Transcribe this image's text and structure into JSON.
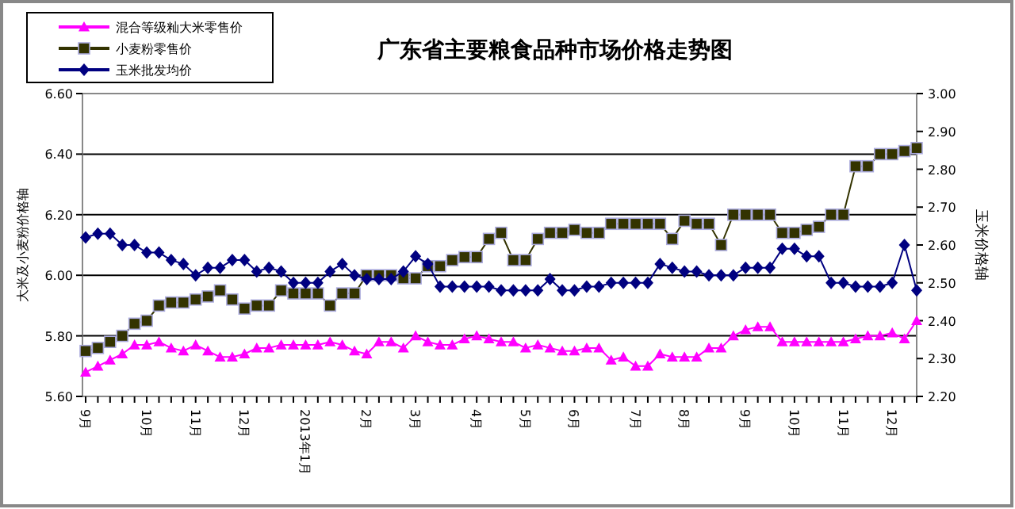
{
  "chart_data": {
    "type": "line",
    "title": "广东省主要粮食品种市场价格走势图",
    "ylabel": "大米及小麦粉价格轴",
    "y2label": "玉米价格轴",
    "categories": [
      "9月",
      null,
      null,
      null,
      null,
      "10月",
      null,
      null,
      null,
      "11月",
      null,
      null,
      null,
      "12月",
      null,
      null,
      null,
      null,
      "2013年1月",
      null,
      null,
      null,
      null,
      "2月",
      null,
      null,
      null,
      "3月",
      null,
      null,
      null,
      null,
      "4月",
      null,
      null,
      null,
      "5月",
      null,
      null,
      null,
      "6月",
      null,
      null,
      null,
      null,
      "7月",
      null,
      null,
      null,
      "8月",
      null,
      null,
      null,
      null,
      "9月",
      null,
      null,
      null,
      "10月",
      null,
      null,
      null,
      "11月",
      null,
      null,
      null,
      "12月",
      null,
      null
    ],
    "series": [
      {
        "name": "混合等级籼大米零售价",
        "color": "#ff00ff",
        "marker": "triangle",
        "values": [
          5.68,
          5.7,
          5.72,
          5.74,
          5.77,
          5.77,
          5.78,
          5.76,
          5.75,
          5.77,
          5.75,
          5.73,
          5.73,
          5.74,
          5.76,
          5.76,
          5.77,
          5.77,
          5.77,
          5.77,
          5.78,
          5.77,
          5.75,
          5.74,
          5.78,
          5.78,
          5.76,
          5.8,
          5.78,
          5.77,
          5.77,
          5.79,
          5.8,
          5.79,
          5.78,
          5.78,
          5.76,
          5.77,
          5.76,
          5.75,
          5.75,
          5.76,
          5.76,
          5.72,
          5.73,
          5.7,
          5.7,
          5.74,
          5.73,
          5.73,
          5.73,
          5.76,
          5.76,
          5.8,
          5.82,
          5.83,
          5.83,
          5.78,
          5.78,
          5.78,
          5.78,
          5.78,
          5.78,
          5.79,
          5.8,
          5.8,
          5.81,
          5.79,
          5.85
        ]
      },
      {
        "name": "小麦粉零售价",
        "color": "#333300",
        "marker": "square",
        "values": [
          5.75,
          5.76,
          5.78,
          5.8,
          5.84,
          5.85,
          5.9,
          5.91,
          5.91,
          5.92,
          5.93,
          5.95,
          5.92,
          5.89,
          5.9,
          5.9,
          5.95,
          5.94,
          5.94,
          5.94,
          5.9,
          5.94,
          5.94,
          6.0,
          6.0,
          6.0,
          5.99,
          5.99,
          6.03,
          6.03,
          6.05,
          6.06,
          6.06,
          6.12,
          6.14,
          6.05,
          6.05,
          6.12,
          6.14,
          6.14,
          6.15,
          6.14,
          6.14,
          6.17,
          6.17,
          6.17,
          6.17,
          6.17,
          6.12,
          6.18,
          6.17,
          6.17,
          6.1,
          6.2,
          6.2,
          6.2,
          6.2,
          6.14,
          6.14,
          6.15,
          6.16,
          6.2,
          6.2,
          6.36,
          6.36,
          6.4,
          6.4,
          6.41,
          6.42
        ]
      },
      {
        "name": "玉米批发均价",
        "color": "#000080",
        "marker": "diamond",
        "axis": "y2",
        "values": [
          2.62,
          2.63,
          2.63,
          2.6,
          2.6,
          2.58,
          2.58,
          2.56,
          2.55,
          2.52,
          2.54,
          2.54,
          2.56,
          2.56,
          2.53,
          2.54,
          2.53,
          2.5,
          2.5,
          2.5,
          2.53,
          2.55,
          2.52,
          2.51,
          2.51,
          2.51,
          2.53,
          2.57,
          2.55,
          2.49,
          2.49,
          2.49,
          2.49,
          2.49,
          2.48,
          2.48,
          2.48,
          2.48,
          2.51,
          2.48,
          2.48,
          2.49,
          2.49,
          2.5,
          2.5,
          2.5,
          2.5,
          2.55,
          2.54,
          2.53,
          2.53,
          2.52,
          2.52,
          2.52,
          2.54,
          2.54,
          2.54,
          2.59,
          2.59,
          2.57,
          2.57,
          2.5,
          2.5,
          2.49,
          2.49,
          2.49,
          2.5,
          2.6,
          2.48
        ]
      }
    ],
    "ylim": [
      5.6,
      6.6
    ],
    "yticks": [
      {
        "value": 5.6,
        "label": "5.60"
      },
      {
        "value": 5.8,
        "label": "5.80"
      },
      {
        "value": 6.0,
        "label": "6.00"
      },
      {
        "value": 6.2,
        "label": "6.20"
      },
      {
        "value": 6.4,
        "label": "6.40"
      },
      {
        "value": 6.6,
        "label": "6.60"
      }
    ],
    "y2lim": [
      2.2,
      3.0
    ],
    "y2ticks": [
      {
        "value": 2.2,
        "label": "2.20"
      },
      {
        "value": 2.3,
        "label": "2.30"
      },
      {
        "value": 2.4,
        "label": "2.40"
      },
      {
        "value": 2.5,
        "label": "2.50"
      },
      {
        "value": 2.6,
        "label": "2.60"
      },
      {
        "value": 2.7,
        "label": "2.70"
      },
      {
        "value": 2.8,
        "label": "2.80"
      },
      {
        "value": 2.9,
        "label": "2.90"
      },
      {
        "value": 3.0,
        "label": "3.00"
      }
    ],
    "grid": "y",
    "legend": "top left",
    "line_style": "solid"
  }
}
